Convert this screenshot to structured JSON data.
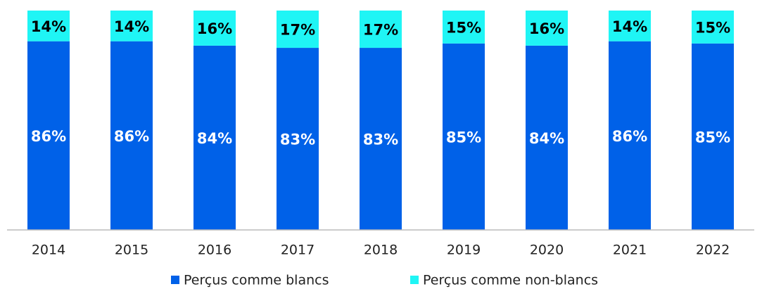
{
  "chart_data": {
    "type": "stacked_bar",
    "categories": [
      "2014",
      "2015",
      "2016",
      "2017",
      "2018",
      "2019",
      "2020",
      "2021",
      "2022"
    ],
    "series": [
      {
        "name": "Perçus comme blancs",
        "color": "#0061e8",
        "label_color": "#ffffff",
        "values": [
          86,
          86,
          84,
          83,
          83,
          85,
          84,
          86,
          85
        ],
        "value_labels": [
          "86%",
          "86%",
          "84%",
          "83%",
          "83%",
          "85%",
          "84%",
          "86%",
          "85%"
        ]
      },
      {
        "name": "Perçus comme non-blancs",
        "color": "#1ff5f5",
        "label_color": "#000000",
        "values": [
          14,
          14,
          16,
          17,
          17,
          15,
          16,
          14,
          15
        ],
        "value_labels": [
          "14%",
          "14%",
          "16%",
          "17%",
          "17%",
          "15%",
          "16%",
          "14%",
          "15%"
        ]
      }
    ],
    "ylim": [
      0,
      100
    ],
    "legend": "bottom"
  }
}
